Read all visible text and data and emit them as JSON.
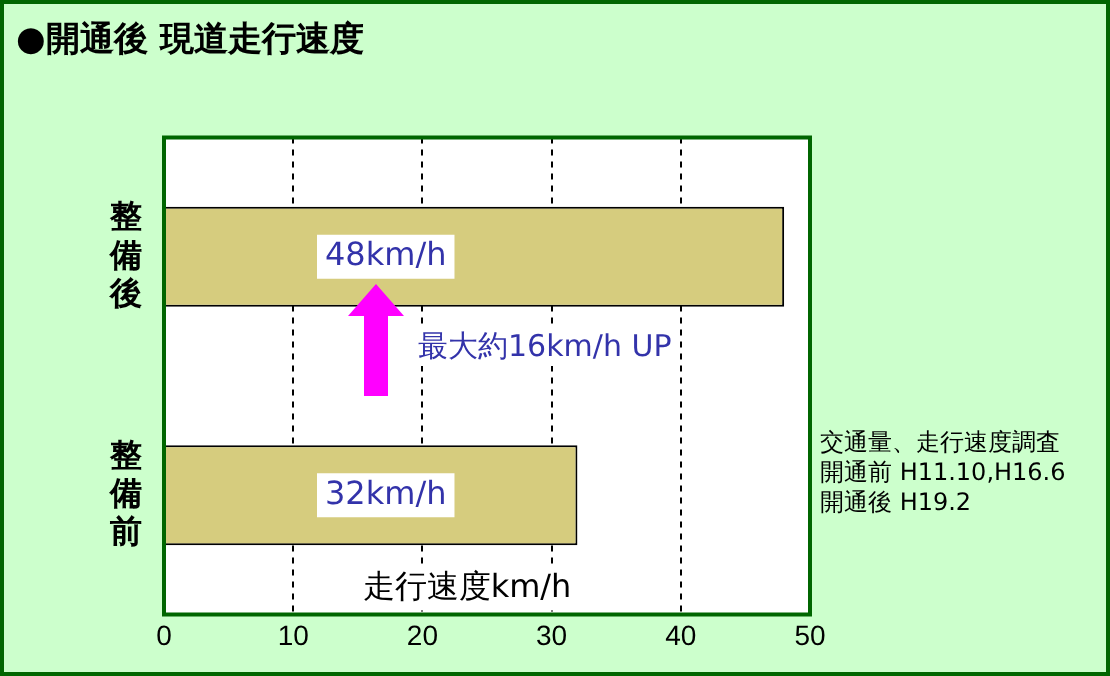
{
  "chart_data": {
    "type": "bar",
    "orientation": "horizontal",
    "title": "●開通後 現道走行速度",
    "categories": [
      "整備後",
      "整備前"
    ],
    "values": [
      48,
      32
    ],
    "color": "#d6cc7e",
    "value_labels": [
      "48km/h",
      "32km/h"
    ],
    "xlim": [
      0,
      50
    ],
    "xticks": [
      0,
      10,
      20,
      30,
      40,
      50
    ],
    "grid": "x",
    "xlabel": "走行速度km/h",
    "annotations": [
      "最大約16km/h UP",
      "交通量、走行速度調査",
      "開通前 H11.10,H16.6",
      "開通後 H19.2"
    ],
    "legend": false
  }
}
